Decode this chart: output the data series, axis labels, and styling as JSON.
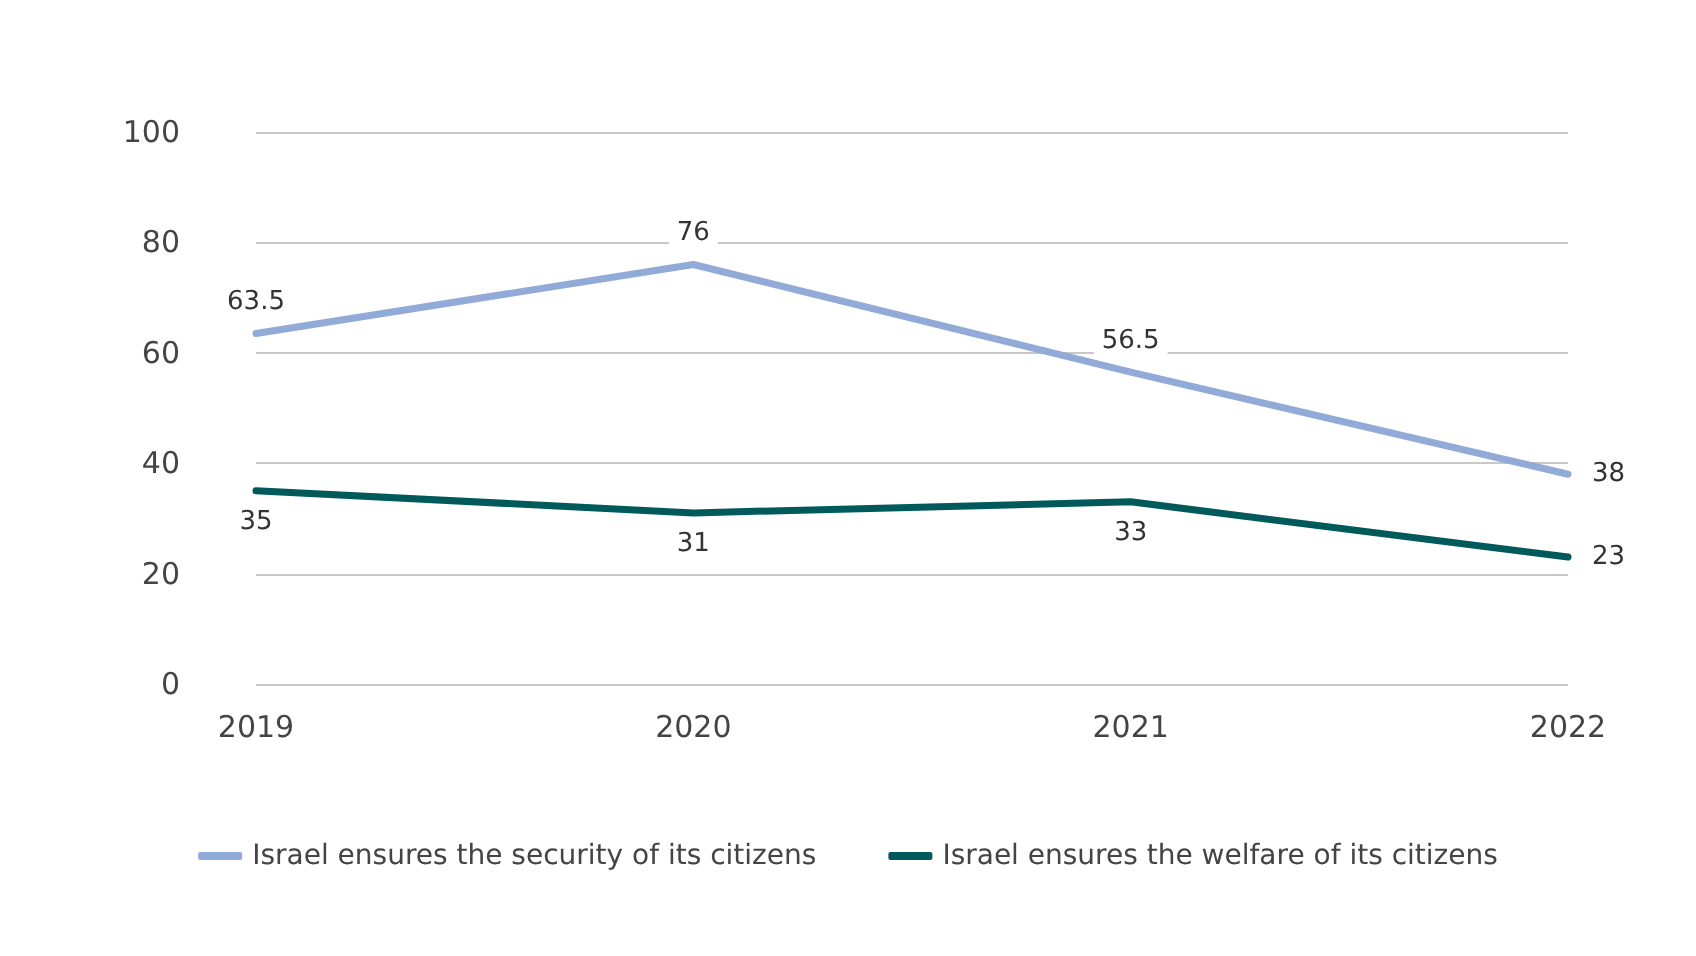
{
  "chart_data": {
    "type": "line",
    "categories": [
      "2019",
      "2020",
      "2021",
      "2022"
    ],
    "series": [
      {
        "name": "Israel ensures the security of its citizens",
        "color": "#92aad8",
        "values": [
          63.5,
          76,
          56.5,
          38
        ]
      },
      {
        "name": "Israel ensures the welfare of its citizens",
        "color": "#005a5c",
        "values": [
          35,
          31,
          33,
          23
        ]
      }
    ],
    "ylim": [
      0,
      100
    ],
    "yticks": [
      0,
      20,
      40,
      60,
      80,
      100
    ],
    "grid": "y",
    "legend": "bottom",
    "data_labels": true,
    "marker": "none",
    "line_style": "solid"
  }
}
